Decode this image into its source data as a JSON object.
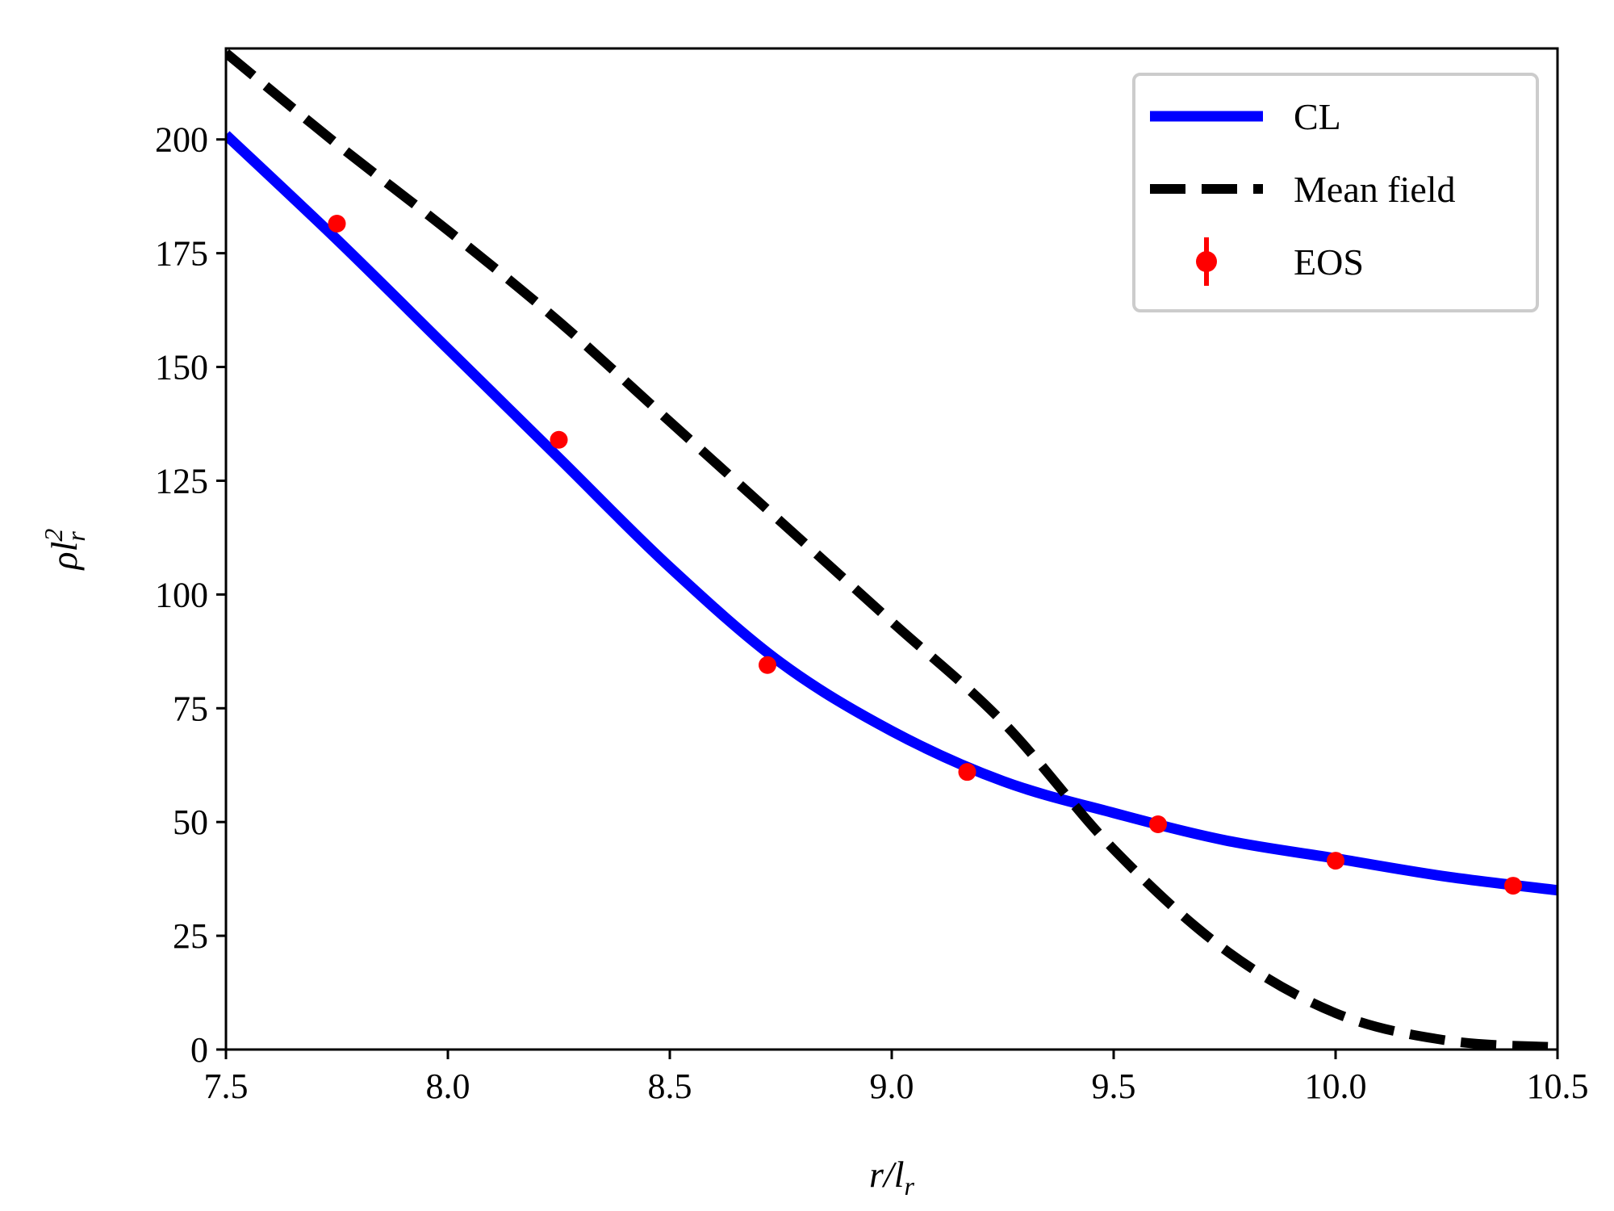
{
  "chart_data": {
    "type": "line",
    "title": "",
    "xlabel": "r/l_r",
    "ylabel": "ρl_r^2",
    "xlim": [
      7.5,
      10.5
    ],
    "ylim": [
      0,
      220
    ],
    "xticks": [
      7.5,
      8.0,
      8.5,
      9.0,
      9.5,
      10.0,
      10.5
    ],
    "xtick_labels": [
      "7.5",
      "8.0",
      "8.5",
      "9.0",
      "9.5",
      "10.0",
      "10.5"
    ],
    "yticks": [
      0,
      25,
      50,
      75,
      100,
      125,
      150,
      175,
      200
    ],
    "ytick_labels": [
      "0",
      "25",
      "50",
      "75",
      "100",
      "125",
      "150",
      "175",
      "200"
    ],
    "grid": false,
    "legend_position": "top-right",
    "series": [
      {
        "name": "CL",
        "kind": "line",
        "style": "solid",
        "color": "#0000ff",
        "x": [
          7.5,
          7.75,
          8.0,
          8.25,
          8.5,
          8.75,
          9.0,
          9.25,
          9.5,
          9.75,
          10.0,
          10.25,
          10.5
        ],
        "y": [
          201,
          178,
          154,
          130,
          106,
          85,
          70,
          59,
          52,
          46,
          42,
          38,
          35
        ]
      },
      {
        "name": "Mean field",
        "kind": "line",
        "style": "dashed",
        "color": "#000000",
        "x": [
          7.5,
          7.75,
          8.0,
          8.25,
          8.5,
          8.75,
          9.0,
          9.25,
          9.5,
          9.75,
          10.0,
          10.25,
          10.5
        ],
        "y": [
          219,
          199,
          180,
          160,
          138,
          116,
          94,
          72,
          44,
          22,
          8,
          2,
          0.5
        ]
      },
      {
        "name": "EOS",
        "kind": "scatter",
        "color": "#ff0000",
        "x": [
          7.75,
          8.25,
          8.72,
          9.17,
          9.6,
          10.0,
          10.4
        ],
        "y": [
          181.5,
          134,
          84.5,
          61,
          49.5,
          41.5,
          36
        ]
      }
    ]
  }
}
